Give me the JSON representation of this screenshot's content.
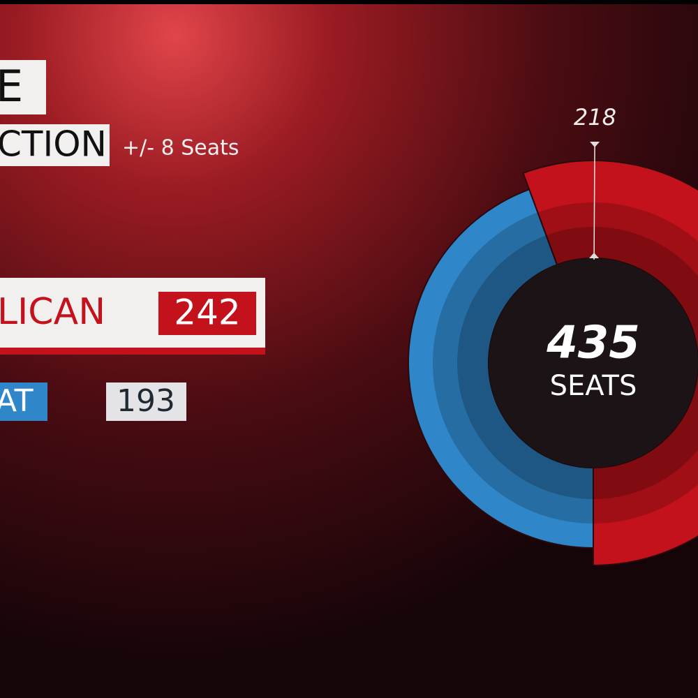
{
  "chart_data": {
    "type": "donut",
    "title": "E",
    "subtitle": "CTION",
    "note": "+/- 8 Seats",
    "series": [
      {
        "name": "LICAN",
        "color": "#c4121c",
        "values": [
          242
        ]
      },
      {
        "name": "AT",
        "color": "#2f86c9",
        "values": [
          193
        ]
      }
    ],
    "total": 435,
    "total_label": "SEATS",
    "threshold": 218
  }
}
